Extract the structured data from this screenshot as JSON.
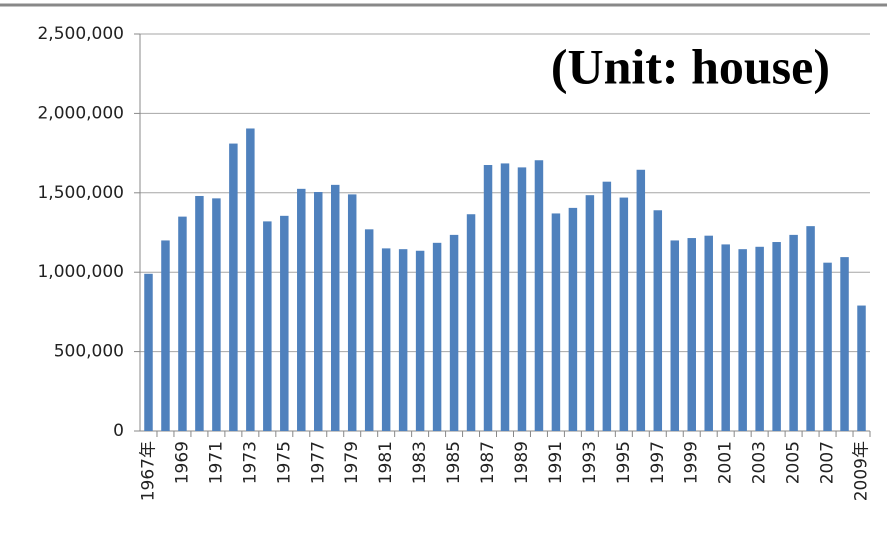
{
  "chart_data": {
    "type": "bar",
    "annotation": "(Unit: house)",
    "categories": [
      "1967年",
      null,
      "1969",
      null,
      "1971",
      null,
      "1973",
      null,
      "1975",
      null,
      "1977",
      null,
      "1979",
      null,
      "1981",
      null,
      "1983",
      null,
      "1985",
      null,
      "1987",
      null,
      "1989",
      null,
      "1991",
      null,
      "1993",
      null,
      "1995",
      null,
      "1997",
      null,
      "1999",
      null,
      "2001",
      null,
      "2003",
      null,
      "2005",
      null,
      "2007",
      null,
      "2009年"
    ],
    "values": [
      990000,
      1200000,
      1350000,
      1480000,
      1465000,
      1810000,
      1905000,
      1320000,
      1355000,
      1525000,
      1505000,
      1550000,
      1490000,
      1270000,
      1150000,
      1145000,
      1135000,
      1185000,
      1235000,
      1365000,
      1675000,
      1685000,
      1660000,
      1705000,
      1370000,
      1405000,
      1485000,
      1570000,
      1470000,
      1645000,
      1390000,
      1200000,
      1215000,
      1230000,
      1175000,
      1145000,
      1160000,
      1190000,
      1235000,
      1290000,
      1060000,
      1095000,
      790000
    ],
    "color": "#4f81bd",
    "ylim": [
      0,
      2500000
    ],
    "yticks": [
      0,
      {
        "value": 500000,
        "label": "500,000"
      },
      {
        "value": 1000000,
        "label": "1,000,000"
      },
      {
        "value": 1500000,
        "label": "1,500,000"
      },
      {
        "value": 2000000,
        "label": "2,000,000"
      },
      {
        "value": 2500000,
        "label": "2,500,000"
      }
    ],
    "grid": true
  }
}
